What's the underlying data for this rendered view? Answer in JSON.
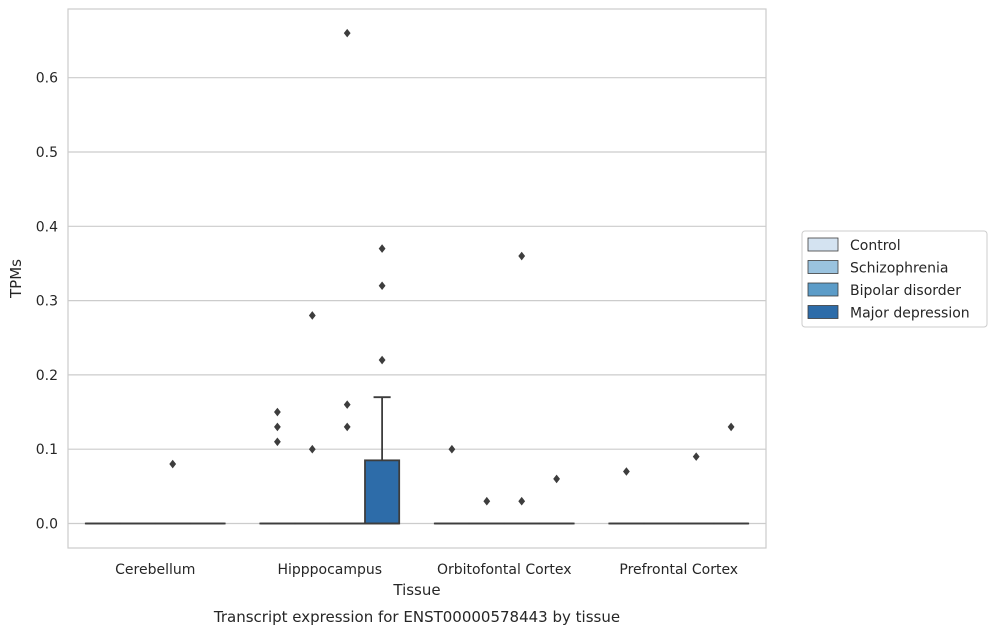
{
  "chart_data": {
    "type": "box",
    "title": "",
    "caption": "Transcript expression for ENST00000578443 by tissue",
    "xlabel": "Tissue",
    "ylabel": "TPMs",
    "ylim": [
      -0.033,
      0.695
    ],
    "yticks": [
      "0.0",
      "0.1",
      "0.2",
      "0.3",
      "0.4",
      "0.5",
      "0.6"
    ],
    "grid": true,
    "legend_position": "right",
    "categories": [
      "Cerebellum",
      "Hipppocampus",
      "Orbitofontal Cortex",
      "Prefrontal Cortex"
    ],
    "series": [
      {
        "name": "Control",
        "color": "#d4e3f1"
      },
      {
        "name": "Schizophrenia",
        "color": "#9ac3df"
      },
      {
        "name": "Bipolar disorder",
        "color": "#5c9cc8"
      },
      {
        "name": "Major depression",
        "color": "#2d6ca9"
      }
    ],
    "boxes": [
      {
        "category": "Cerebellum",
        "series": "Control",
        "q1": 0,
        "median": 0,
        "q3": 0,
        "whisker_low": 0,
        "whisker_high": 0,
        "outliers": []
      },
      {
        "category": "Cerebellum",
        "series": "Schizophrenia",
        "q1": 0,
        "median": 0,
        "q3": 0,
        "whisker_low": 0,
        "whisker_high": 0,
        "outliers": []
      },
      {
        "category": "Cerebellum",
        "series": "Bipolar disorder",
        "q1": 0,
        "median": 0,
        "q3": 0,
        "whisker_low": 0,
        "whisker_high": 0,
        "outliers": [
          0.08
        ]
      },
      {
        "category": "Cerebellum",
        "series": "Major depression",
        "q1": 0,
        "median": 0,
        "q3": 0,
        "whisker_low": 0,
        "whisker_high": 0,
        "outliers": []
      },
      {
        "category": "Hipppocampus",
        "series": "Control",
        "q1": 0,
        "median": 0,
        "q3": 0,
        "whisker_low": 0,
        "whisker_high": 0,
        "outliers": [
          0.11,
          0.13,
          0.15
        ]
      },
      {
        "category": "Hipppocampus",
        "series": "Schizophrenia",
        "q1": 0,
        "median": 0,
        "q3": 0,
        "whisker_low": 0,
        "whisker_high": 0,
        "outliers": [
          0.1,
          0.28
        ]
      },
      {
        "category": "Hipppocampus",
        "series": "Bipolar disorder",
        "q1": 0,
        "median": 0,
        "q3": 0,
        "whisker_low": 0,
        "whisker_high": 0,
        "outliers": [
          0.13,
          0.16,
          0.66
        ]
      },
      {
        "category": "Hipppocampus",
        "series": "Major depression",
        "q1": 0,
        "median": 0,
        "q3": 0.085,
        "whisker_low": 0,
        "whisker_high": 0.17,
        "outliers": [
          0.22,
          0.32,
          0.37
        ]
      },
      {
        "category": "Orbitofontal Cortex",
        "series": "Control",
        "q1": 0,
        "median": 0,
        "q3": 0,
        "whisker_low": 0,
        "whisker_high": 0,
        "outliers": [
          0.1
        ]
      },
      {
        "category": "Orbitofontal Cortex",
        "series": "Schizophrenia",
        "q1": 0,
        "median": 0,
        "q3": 0,
        "whisker_low": 0,
        "whisker_high": 0,
        "outliers": [
          0.03
        ]
      },
      {
        "category": "Orbitofontal Cortex",
        "series": "Bipolar disorder",
        "q1": 0,
        "median": 0,
        "q3": 0,
        "whisker_low": 0,
        "whisker_high": 0,
        "outliers": [
          0.03,
          0.36
        ]
      },
      {
        "category": "Orbitofontal Cortex",
        "series": "Major depression",
        "q1": 0,
        "median": 0,
        "q3": 0,
        "whisker_low": 0,
        "whisker_high": 0,
        "outliers": [
          0.06
        ]
      },
      {
        "category": "Prefrontal Cortex",
        "series": "Control",
        "q1": 0,
        "median": 0,
        "q3": 0,
        "whisker_low": 0,
        "whisker_high": 0,
        "outliers": [
          0.07
        ]
      },
      {
        "category": "Prefrontal Cortex",
        "series": "Schizophrenia",
        "q1": 0,
        "median": 0,
        "q3": 0,
        "whisker_low": 0,
        "whisker_high": 0,
        "outliers": []
      },
      {
        "category": "Prefrontal Cortex",
        "series": "Bipolar disorder",
        "q1": 0,
        "median": 0,
        "q3": 0,
        "whisker_low": 0,
        "whisker_high": 0,
        "outliers": [
          0.09
        ]
      },
      {
        "category": "Prefrontal Cortex",
        "series": "Major depression",
        "q1": 0,
        "median": 0,
        "q3": 0,
        "whisker_low": 0,
        "whisker_high": 0,
        "outliers": [
          0.13
        ]
      }
    ]
  }
}
